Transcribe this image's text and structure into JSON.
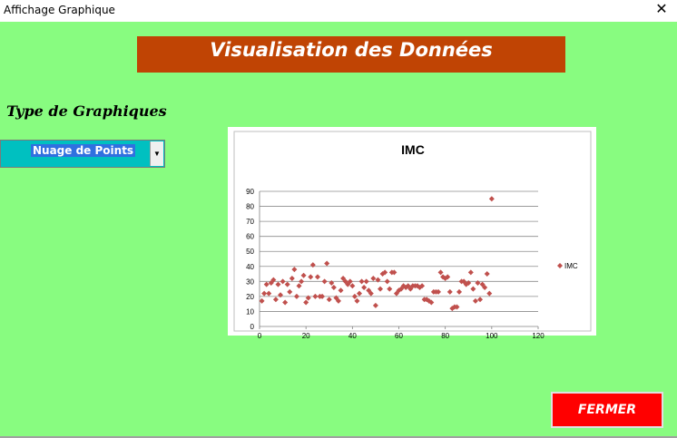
{
  "window": {
    "title": "Affichage Graphique",
    "close_glyph": "✕"
  },
  "header": {
    "banner": "Visualisation des Données"
  },
  "controls": {
    "type_label": "Type de Graphiques",
    "chart_type": {
      "selected": "Nuage de Points"
    }
  },
  "buttons": {
    "close_label": "FERMER"
  },
  "colors": {
    "background": "#88fc80",
    "banner": "#c04404",
    "combo": "#00c0c0",
    "close_button": "#ff0000",
    "marker": "#c0504d"
  },
  "chart_data": {
    "type": "scatter",
    "title": "IMC",
    "xlabel": "",
    "ylabel": "",
    "xlim": [
      0,
      120
    ],
    "ylim": [
      0,
      90
    ],
    "xticks": [
      0,
      20,
      40,
      60,
      80,
      100,
      120
    ],
    "yticks": [
      0,
      10,
      20,
      30,
      40,
      50,
      60,
      70,
      80,
      90
    ],
    "grid": true,
    "legend": "right",
    "series": [
      {
        "name": "IMC",
        "x": [
          1,
          2,
          3,
          4,
          5,
          6,
          7,
          8,
          9,
          10,
          11,
          12,
          13,
          14,
          15,
          16,
          17,
          18,
          19,
          20,
          21,
          22,
          23,
          24,
          25,
          26,
          27,
          28,
          29,
          30,
          31,
          32,
          33,
          34,
          35,
          36,
          37,
          38,
          39,
          40,
          41,
          42,
          43,
          44,
          45,
          46,
          47,
          48,
          49,
          50,
          51,
          52,
          53,
          54,
          55,
          56,
          57,
          58,
          59,
          60,
          61,
          62,
          63,
          64,
          65,
          66,
          67,
          68,
          69,
          70,
          71,
          72,
          73,
          74,
          75,
          76,
          77,
          78,
          79,
          80,
          81,
          82,
          83,
          84,
          85,
          86,
          87,
          88,
          89,
          90,
          91,
          92,
          93,
          94,
          95,
          96,
          97,
          98,
          99,
          100
        ],
        "y": [
          17,
          22,
          28,
          22,
          29,
          31,
          18,
          28,
          21,
          30,
          16,
          28,
          23,
          32,
          38,
          20,
          27,
          30,
          34,
          16,
          19,
          33,
          41,
          20,
          33,
          20,
          20,
          30,
          42,
          18,
          29,
          26,
          19,
          17,
          24,
          32,
          30,
          28,
          30,
          27,
          20,
          17,
          22,
          30,
          26,
          30,
          24,
          22,
          32,
          14,
          31,
          25,
          35,
          36,
          30,
          25,
          36,
          36,
          22,
          24,
          25,
          27,
          26,
          27,
          25,
          27,
          27,
          27,
          26,
          27,
          18,
          18,
          17,
          16,
          23,
          23,
          23,
          36,
          33,
          32,
          33,
          23,
          12,
          13,
          13,
          23,
          30,
          30,
          28,
          29,
          36,
          25,
          17,
          29,
          18,
          28,
          26,
          35,
          22,
          85
        ]
      }
    ]
  }
}
